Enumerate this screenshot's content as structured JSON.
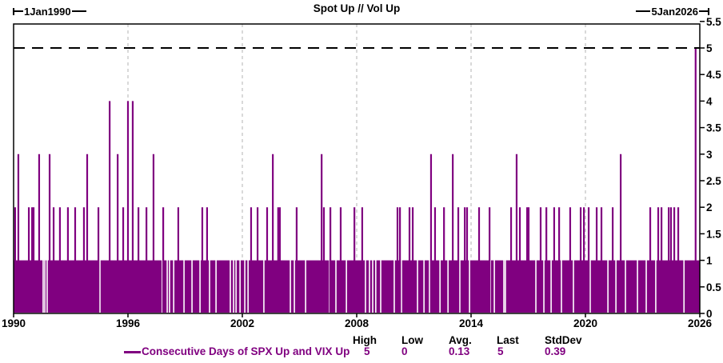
{
  "header": {
    "title": "Spot Up // Vol Up",
    "start_date_label": "1Jan1990",
    "end_date_label": "5Jan2026"
  },
  "footer": {
    "legend_label": "Consecutive Days of SPX Up and VIX Up",
    "high_label": "High",
    "low_label": "Low",
    "avg_label": "Avg.",
    "last_label": "Last",
    "stddev_label": "StdDev",
    "high_value": "5",
    "low_value": "0",
    "avg_value": "0.13",
    "last_value": "5",
    "stddev_value": "0.39"
  },
  "colors": {
    "series": "#800080",
    "grid": "#b3b3b3",
    "axis": "#000000",
    "reference_line": "#000000",
    "background": "#ffffff"
  },
  "chart_data": {
    "type": "bar",
    "title": "Spot Up // Vol Up",
    "series_name": "Consecutive Days of SPX Up and VIX Up",
    "x_range": [
      1990,
      2026
    ],
    "x_ticks": [
      1990,
      1996,
      2002,
      2008,
      2014,
      2020,
      2026
    ],
    "grid_x": [
      1996,
      2002,
      2008,
      2014,
      2020
    ],
    "ylim": [
      0,
      5.5
    ],
    "y_ticks": [
      0,
      0.5,
      1,
      1.5,
      2,
      2.5,
      3,
      3.5,
      4,
      4.5,
      5,
      5.5
    ],
    "y_axis_side": "right",
    "reference_line_y": 5,
    "stats": {
      "high": 5,
      "low": 0,
      "avg": 0.13,
      "last": 5,
      "stddev": 0.39
    },
    "base_band": {
      "value": 1,
      "from_year": 1990.0,
      "to_year": 2026.0
    },
    "base_gaps": [
      1991.55,
      1991.64,
      1991.76,
      1994.53,
      1997.8,
      1998.06,
      1998.18,
      1998.4,
      1998.94,
      1999.36,
      1999.78,
      2000.28,
      2000.62,
      2001.37,
      2001.54,
      2001.67,
      2001.88,
      2002.13,
      2002.3,
      2003.13,
      2004.52,
      2004.73,
      2005.32,
      2006.58,
      2006.91,
      2007.46,
      2008.46,
      2008.67,
      2008.84,
      2009.0,
      2009.26,
      2009.97,
      2010.35,
      2011.19,
      2011.53,
      2011.82,
      2012.37,
      2012.79,
      2013.41,
      2013.92,
      2015.01,
      2015.22,
      2015.72,
      2015.8,
      2017.4,
      2017.82,
      2018.2,
      2018.74,
      2019.37,
      2020.25,
      2021.18,
      2021.6,
      2022.1,
      2022.73,
      2023.19,
      2023.69,
      2024.66,
      2025.17
    ],
    "spikes": [
      [
        1990.08,
        2
      ],
      [
        1990.25,
        3
      ],
      [
        1990.8,
        2
      ],
      [
        1990.97,
        2
      ],
      [
        1991.05,
        2
      ],
      [
        1991.34,
        3
      ],
      [
        1991.89,
        3
      ],
      [
        1992.1,
        2
      ],
      [
        1992.43,
        2
      ],
      [
        1992.85,
        2
      ],
      [
        1993.23,
        2
      ],
      [
        1993.69,
        2
      ],
      [
        1993.86,
        3
      ],
      [
        1994.45,
        2
      ],
      [
        1995.04,
        4
      ],
      [
        1995.46,
        3
      ],
      [
        1995.75,
        2
      ],
      [
        1996.0,
        4
      ],
      [
        1996.25,
        4
      ],
      [
        1996.55,
        2
      ],
      [
        1996.97,
        2
      ],
      [
        1997.34,
        3
      ],
      [
        1997.85,
        2
      ],
      [
        1998.64,
        2
      ],
      [
        1999.9,
        2
      ],
      [
        2000.15,
        2
      ],
      [
        2002.46,
        2
      ],
      [
        2002.8,
        2
      ],
      [
        2003.3,
        2
      ],
      [
        2003.6,
        3
      ],
      [
        2003.88,
        2
      ],
      [
        2003.97,
        2
      ],
      [
        2004.85,
        2
      ],
      [
        2006.16,
        3
      ],
      [
        2006.28,
        2
      ],
      [
        2006.62,
        2
      ],
      [
        2007.16,
        2
      ],
      [
        2007.88,
        2
      ],
      [
        2008.29,
        2
      ],
      [
        2010.14,
        2
      ],
      [
        2010.27,
        2
      ],
      [
        2010.77,
        2
      ],
      [
        2010.94,
        2
      ],
      [
        2011.9,
        3
      ],
      [
        2012.11,
        2
      ],
      [
        2012.58,
        2
      ],
      [
        2013.04,
        3
      ],
      [
        2013.33,
        2
      ],
      [
        2013.67,
        2
      ],
      [
        2013.79,
        2
      ],
      [
        2014.42,
        2
      ],
      [
        2014.97,
        2
      ],
      [
        2016.1,
        2
      ],
      [
        2016.39,
        3
      ],
      [
        2016.56,
        2
      ],
      [
        2016.94,
        2
      ],
      [
        2017.02,
        2
      ],
      [
        2017.65,
        2
      ],
      [
        2017.95,
        2
      ],
      [
        2018.36,
        2
      ],
      [
        2018.62,
        2
      ],
      [
        2019.2,
        2
      ],
      [
        2019.75,
        2
      ],
      [
        2019.92,
        2
      ],
      [
        2020.17,
        2
      ],
      [
        2020.59,
        2
      ],
      [
        2020.84,
        2
      ],
      [
        2021.43,
        2
      ],
      [
        2021.85,
        3
      ],
      [
        2023.4,
        2
      ],
      [
        2023.82,
        2
      ],
      [
        2023.99,
        2
      ],
      [
        2024.37,
        2
      ],
      [
        2024.49,
        2
      ],
      [
        2024.66,
        2
      ],
      [
        2024.87,
        2
      ],
      [
        2025.78,
        5
      ]
    ]
  }
}
